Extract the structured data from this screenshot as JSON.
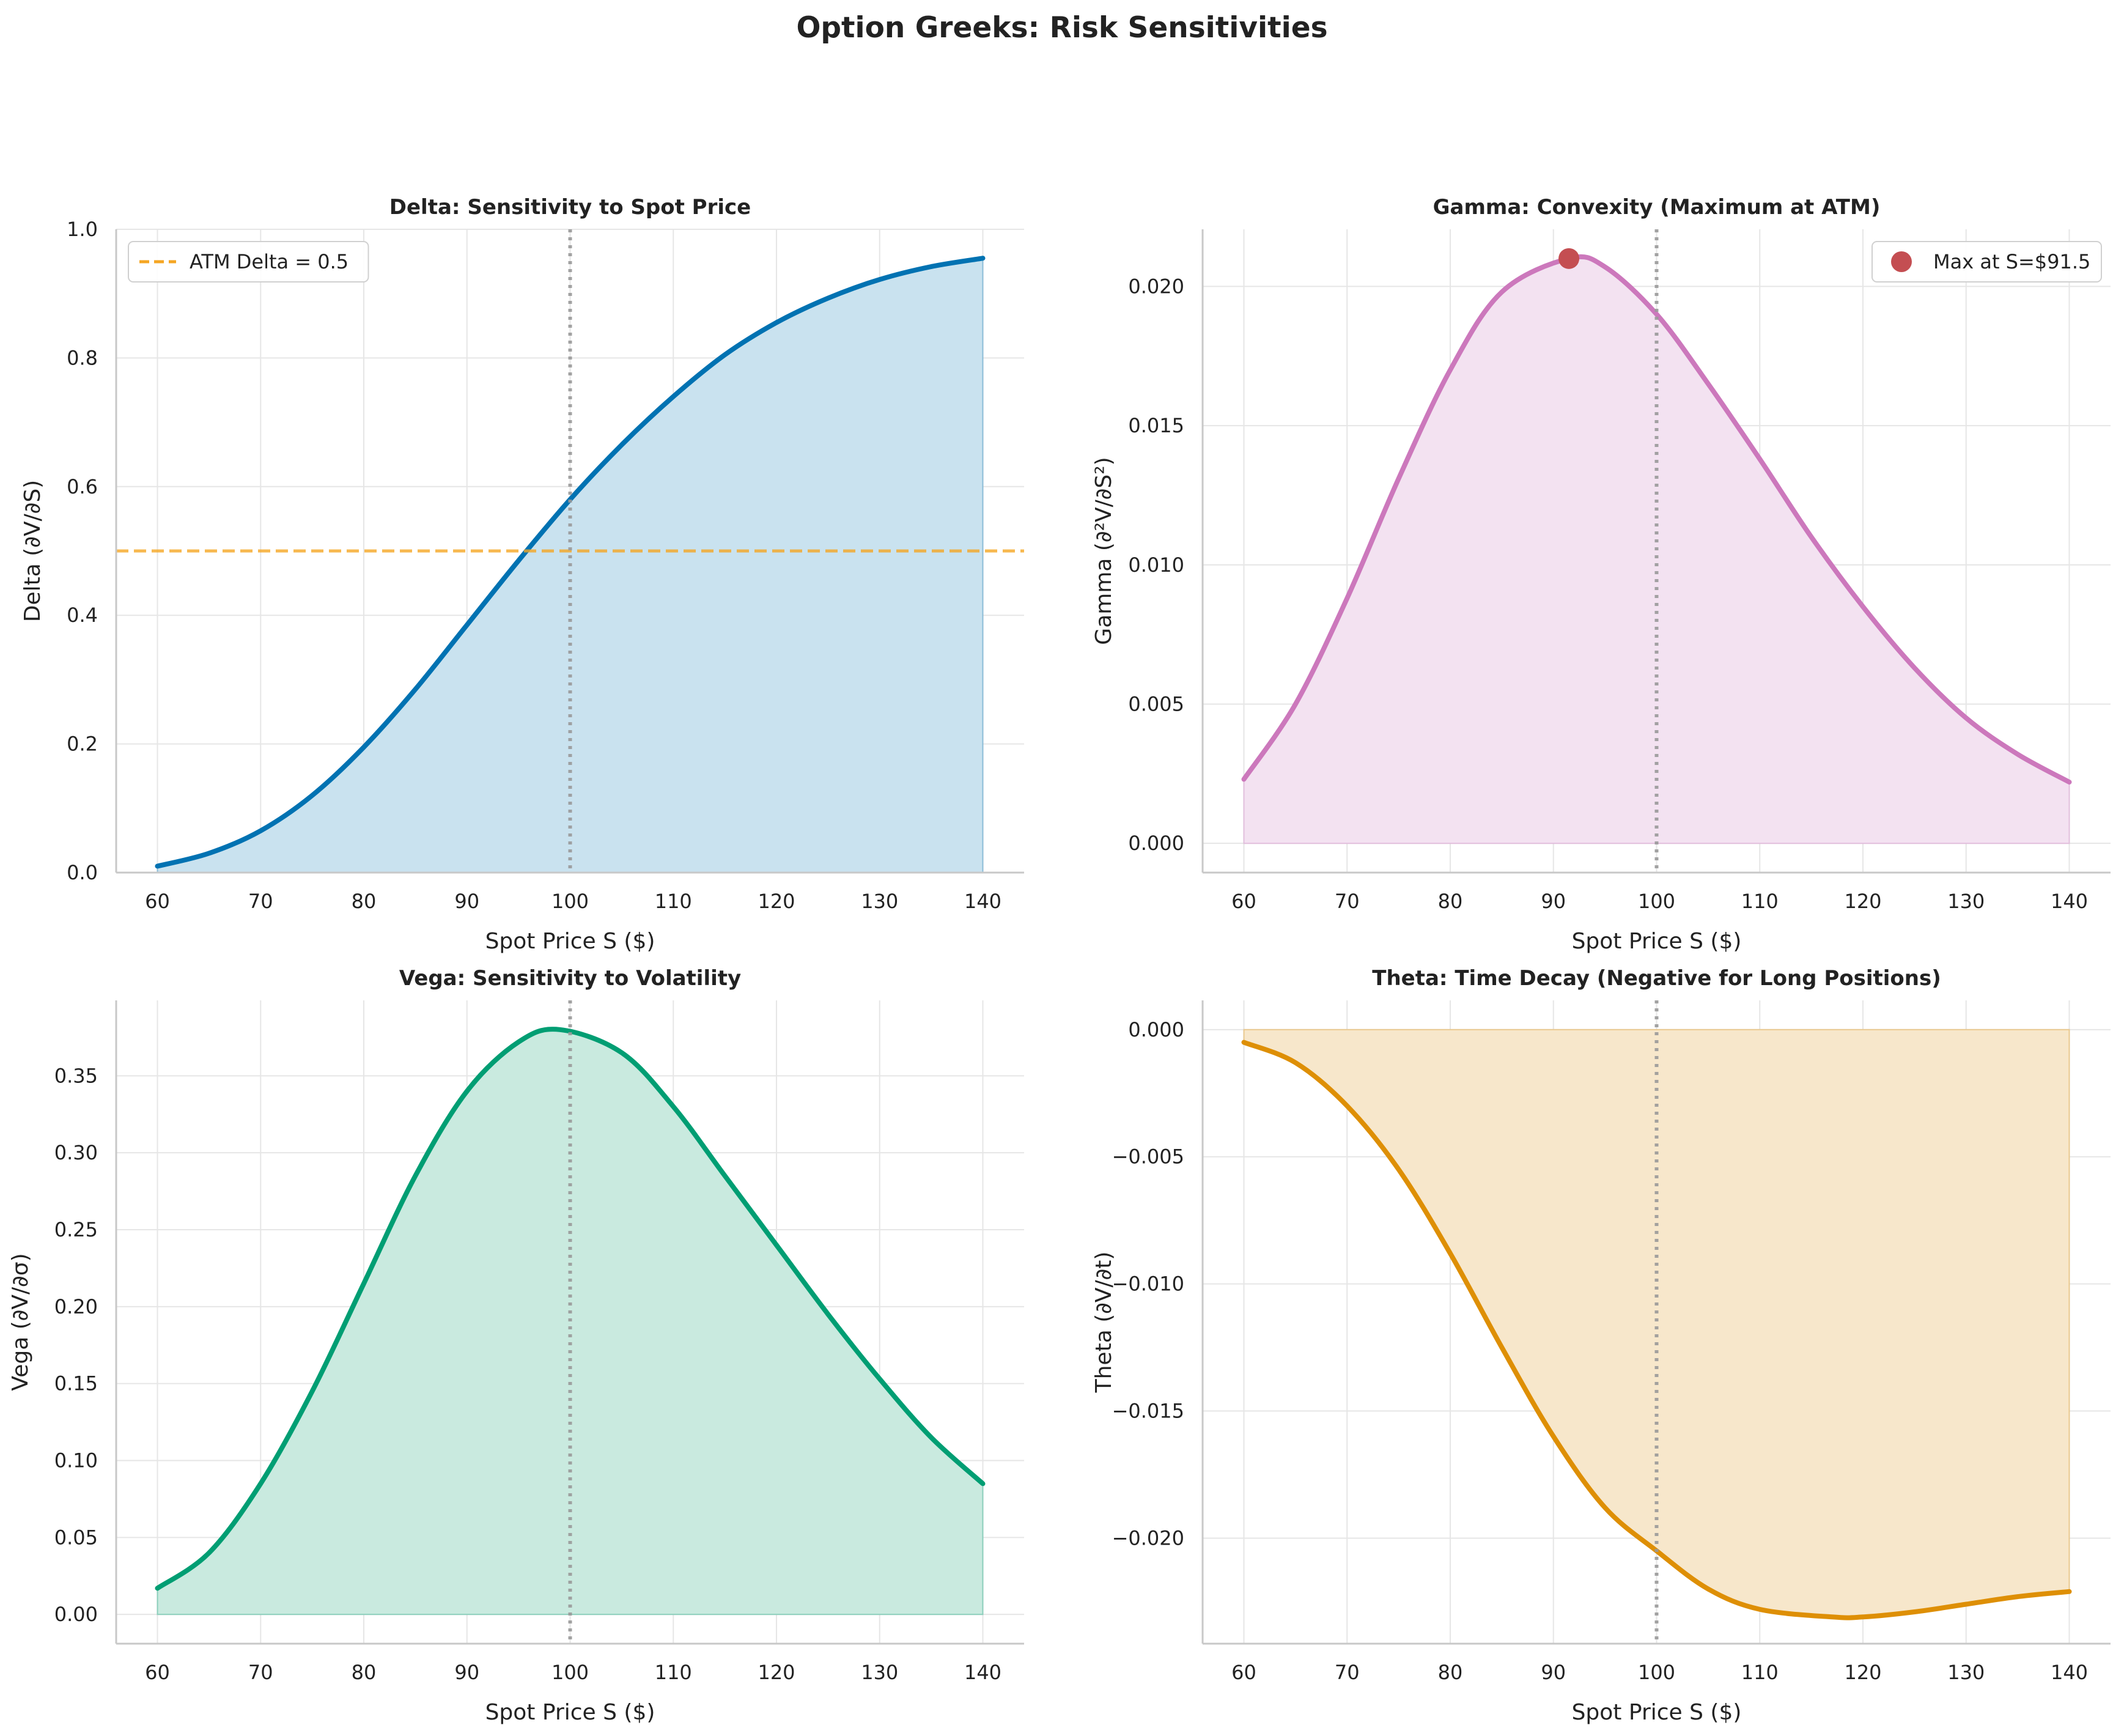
{
  "suptitle": "Option Greeks: Risk Sensitivities",
  "chart_data": [
    {
      "type": "area",
      "title": "Delta: Sensitivity to Spot Price",
      "xlabel": "Spot Price S ($)",
      "ylabel": "Delta (∂V/∂S)",
      "xlim": [
        56,
        144
      ],
      "ylim": [
        0.0,
        1.0
      ],
      "xticks": [
        60,
        70,
        80,
        90,
        100,
        110,
        120,
        130,
        140
      ],
      "yticks": [
        "0.0",
        "0.2",
        "0.4",
        "0.6",
        "0.8",
        "1.0"
      ],
      "color": "#0072b2",
      "fill": "#c9e2ef",
      "grid": true,
      "series": [
        {
          "x": [
            60,
            65,
            70,
            75,
            80,
            85,
            90,
            95,
            100,
            105,
            110,
            115,
            120,
            125,
            130,
            135,
            140
          ],
          "y": [
            0.01,
            0.03,
            0.065,
            0.12,
            0.195,
            0.285,
            0.385,
            0.485,
            0.58,
            0.665,
            0.74,
            0.805,
            0.855,
            0.893,
            0.922,
            0.942,
            0.955
          ]
        }
      ],
      "hlines": [
        {
          "y": 0.5,
          "color": "#f5a623",
          "style": "dashed",
          "label": "ATM Delta = 0.5"
        }
      ],
      "vlines": [
        {
          "x": 100,
          "color": "#999999",
          "style": "dotted"
        }
      ],
      "legend": "top-left"
    },
    {
      "type": "area",
      "title": "Gamma: Convexity (Maximum at ATM)",
      "xlabel": "Spot Price S ($)",
      "ylabel": "Gamma (∂²V/∂S²)",
      "xlim": [
        56,
        144
      ],
      "ylim": [
        -0.00105,
        0.02205
      ],
      "xticks": [
        60,
        70,
        80,
        90,
        100,
        110,
        120,
        130,
        140
      ],
      "yticks": [
        "0.000",
        "0.005",
        "0.010",
        "0.015",
        "0.020"
      ],
      "color": "#cc78bc",
      "fill": "#f3e2f1",
      "grid": true,
      "series": [
        {
          "x": [
            60,
            65,
            70,
            75,
            80,
            85,
            91.5,
            95,
            100,
            105,
            110,
            115,
            120,
            125,
            130,
            135,
            140
          ],
          "y": [
            0.0023,
            0.005,
            0.0088,
            0.0131,
            0.017,
            0.0198,
            0.021,
            0.0207,
            0.019,
            0.0165,
            0.0138,
            0.011,
            0.0085,
            0.0063,
            0.0045,
            0.0032,
            0.0022
          ]
        }
      ],
      "points": [
        {
          "x": 91.5,
          "y": 0.021,
          "color": "#c44e52",
          "label": "Max at S=$91.5"
        }
      ],
      "vlines": [
        {
          "x": 100,
          "color": "#999999",
          "style": "dotted"
        }
      ],
      "legend": "top-right"
    },
    {
      "type": "area",
      "title": "Vega: Sensitivity to Volatility",
      "xlabel": "Spot Price S ($)",
      "ylabel": "Vega (∂V/∂σ)",
      "xlim": [
        56,
        144
      ],
      "ylim": [
        -0.019,
        0.399
      ],
      "xticks": [
        60,
        70,
        80,
        90,
        100,
        110,
        120,
        130,
        140
      ],
      "yticks": [
        "0.00",
        "0.05",
        "0.10",
        "0.15",
        "0.20",
        "0.25",
        "0.30",
        "0.35"
      ],
      "color": "#009e73",
      "fill": "#c9eadf",
      "grid": true,
      "series": [
        {
          "x": [
            60,
            65,
            70,
            75,
            80,
            85,
            90,
            95,
            99,
            105,
            110,
            115,
            120,
            125,
            130,
            135,
            140
          ],
          "y": [
            0.017,
            0.04,
            0.085,
            0.145,
            0.215,
            0.285,
            0.34,
            0.372,
            0.38,
            0.365,
            0.33,
            0.285,
            0.24,
            0.195,
            0.153,
            0.115,
            0.085
          ]
        }
      ],
      "vlines": [
        {
          "x": 100,
          "color": "#999999",
          "style": "dotted"
        }
      ]
    },
    {
      "type": "area",
      "title": "Theta: Time Decay (Negative for Long Positions)",
      "xlabel": "Spot Price S ($)",
      "ylabel": "Theta (∂V/∂t)",
      "xlim": [
        56,
        144
      ],
      "ylim": [
        -0.02415,
        0.00115
      ],
      "xticks": [
        60,
        70,
        80,
        90,
        100,
        110,
        120,
        130,
        140
      ],
      "yticks": [
        "0.000",
        "−0.005",
        "−0.010",
        "−0.015",
        "−0.020"
      ],
      "color": "#de8f05",
      "fill": "#f7e7cb",
      "grid": true,
      "series": [
        {
          "x": [
            60,
            65,
            70,
            75,
            80,
            85,
            90,
            95,
            100,
            105,
            110,
            117,
            120,
            125,
            130,
            135,
            140
          ],
          "y": [
            -0.0005,
            -0.0013,
            -0.003,
            -0.0055,
            -0.0088,
            -0.0125,
            -0.016,
            -0.0188,
            -0.0205,
            -0.022,
            -0.0228,
            -0.0231,
            -0.0231,
            -0.0229,
            -0.0226,
            -0.0223,
            -0.0221
          ]
        }
      ],
      "vlines": [
        {
          "x": 100,
          "color": "#999999",
          "style": "dotted"
        }
      ]
    }
  ]
}
